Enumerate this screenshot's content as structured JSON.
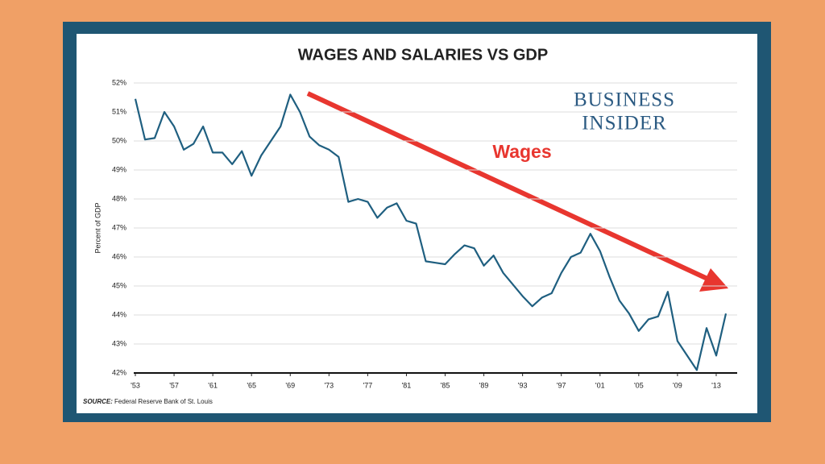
{
  "chart_data": {
    "type": "line",
    "title": "WAGES AND SALARIES VS GDP",
    "ylabel": "Percent of GDP",
    "annotation": "Wages",
    "logo": [
      "BUSINESS",
      "INSIDER"
    ],
    "source_label": "SOURCE:",
    "source": "Federal Reserve Bank of St. Louis",
    "x": [
      1953,
      1954,
      1955,
      1956,
      1957,
      1958,
      1959,
      1960,
      1961,
      1962,
      1963,
      1964,
      1965,
      1966,
      1967,
      1968,
      1969,
      1970,
      1971,
      1972,
      1973,
      1974,
      1975,
      1976,
      1977,
      1978,
      1979,
      1980,
      1981,
      1982,
      1983,
      1984,
      1985,
      1986,
      1987,
      1988,
      1989,
      1990,
      1991,
      1992,
      1993,
      1994,
      1995,
      1996,
      1997,
      1998,
      1999,
      2000,
      2001,
      2002,
      2003,
      2004,
      2005,
      2006,
      2007,
      2008,
      2009,
      2010,
      2011,
      2012,
      2013,
      2014
    ],
    "series": [
      {
        "name": "Wages and salaries",
        "color": "#1f5f80",
        "values": [
          51.45,
          50.05,
          50.1,
          51.0,
          50.5,
          49.7,
          49.9,
          50.5,
          49.6,
          49.6,
          49.2,
          49.65,
          48.8,
          49.5,
          50.0,
          50.5,
          51.6,
          51.0,
          50.15,
          49.85,
          49.7,
          49.45,
          47.9,
          48.0,
          47.9,
          47.35,
          47.7,
          47.85,
          47.25,
          47.15,
          45.85,
          45.8,
          45.75,
          46.1,
          46.4,
          46.3,
          45.7,
          46.05,
          45.45,
          45.05,
          44.65,
          44.3,
          44.6,
          44.75,
          45.45,
          46.0,
          46.15,
          46.8,
          46.2,
          45.3,
          44.5,
          44.05,
          43.45,
          43.85,
          43.95,
          44.8,
          43.1,
          42.6,
          42.1,
          43.55,
          42.6,
          44.05
        ]
      }
    ],
    "xlim": [
      1953,
      2015
    ],
    "ylim": [
      42,
      52
    ],
    "xticks": [
      {
        "value": 1953,
        "label": "'53"
      },
      {
        "value": 1957,
        "label": "'57"
      },
      {
        "value": 1961,
        "label": "'61"
      },
      {
        "value": 1965,
        "label": "'65"
      },
      {
        "value": 1969,
        "label": "'69"
      },
      {
        "value": 1973,
        "label": "'73"
      },
      {
        "value": 1977,
        "label": "'77"
      },
      {
        "value": 1981,
        "label": "'81"
      },
      {
        "value": 1985,
        "label": "'85"
      },
      {
        "value": 1989,
        "label": "'89"
      },
      {
        "value": 1993,
        "label": "'93"
      },
      {
        "value": 1997,
        "label": "'97"
      },
      {
        "value": 2001,
        "label": "'01"
      },
      {
        "value": 2005,
        "label": "'05"
      },
      {
        "value": 2009,
        "label": "'09"
      },
      {
        "value": 2013,
        "label": "'13"
      }
    ],
    "yticks": [
      {
        "value": 42,
        "label": "42%"
      },
      {
        "value": 43,
        "label": "43%"
      },
      {
        "value": 44,
        "label": "44%"
      },
      {
        "value": 45,
        "label": "45%"
      },
      {
        "value": 46,
        "label": "46%"
      },
      {
        "value": 47,
        "label": "47%"
      },
      {
        "value": 48,
        "label": "48%"
      },
      {
        "value": 49,
        "label": "49%"
      },
      {
        "value": 50,
        "label": "50%"
      },
      {
        "value": 51,
        "label": "51%"
      },
      {
        "value": 52,
        "label": "52%"
      }
    ],
    "grid": true
  }
}
